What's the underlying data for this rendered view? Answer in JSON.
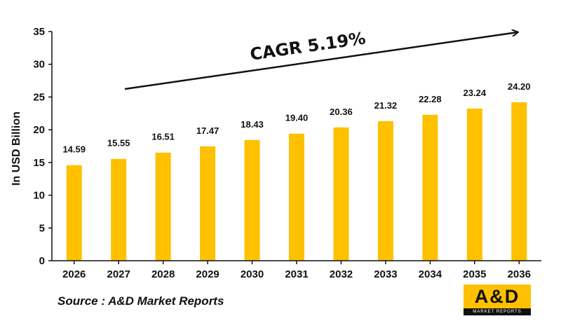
{
  "chart_data": {
    "type": "bar",
    "categories": [
      "2026",
      "2027",
      "2028",
      "2029",
      "2030",
      "2031",
      "2032",
      "2033",
      "2034",
      "2035",
      "2036"
    ],
    "values": [
      14.59,
      15.55,
      16.51,
      17.47,
      18.43,
      19.4,
      20.36,
      21.32,
      22.28,
      23.24,
      24.2
    ],
    "value_labels": [
      "14.59",
      "15.55",
      "16.51",
      "17.47",
      "18.43",
      "19.40",
      "20.36",
      "21.32",
      "22.28",
      "23.24",
      "24.20"
    ],
    "ylabel": "In USD Billion",
    "xlabel": "",
    "ylim": [
      0,
      35
    ],
    "yticks": [
      0,
      5,
      10,
      15,
      20,
      25,
      30,
      35
    ],
    "grid": false,
    "bar_color": "#FFC000",
    "annotation": "CAGR 5.19%"
  },
  "source_text": "Source : A&D Market Reports",
  "logo": {
    "main": "A&D",
    "sub": "MARKET REPORTS",
    "color": "#FFC000"
  }
}
